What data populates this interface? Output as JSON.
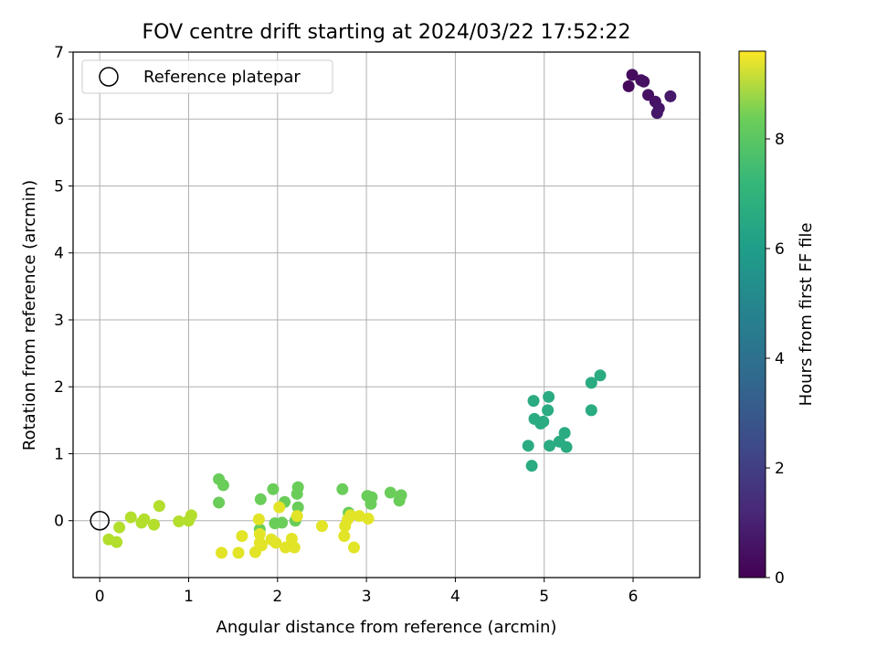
{
  "chart_data": {
    "type": "scatter",
    "title": "FOV centre drift starting at 2024/03/22 17:52:22",
    "xlabel": "Angular distance from reference (arcmin)",
    "ylabel": "Rotation from reference (arcmin)",
    "xlim": [
      -0.3,
      6.75
    ],
    "ylim": [
      -0.85,
      7.0
    ],
    "xticks": [
      0,
      1,
      2,
      3,
      4,
      5,
      6
    ],
    "yticks": [
      0,
      1,
      2,
      3,
      4,
      5,
      6,
      7
    ],
    "grid": true,
    "legend": {
      "placement": "top-left",
      "entries": [
        "Reference platepar"
      ]
    },
    "reference_point": {
      "name": "Reference platepar",
      "x": 0,
      "y": 0
    },
    "colorbar": {
      "label": "Hours from first FF file",
      "colormap": "viridis",
      "range": [
        0,
        9.6
      ],
      "ticks": [
        0,
        2,
        4,
        6,
        8
      ]
    },
    "points": [
      {
        "x": 5.95,
        "y": 6.49,
        "c": 0.25
      },
      {
        "x": 5.99,
        "y": 6.66,
        "c": 0.3
      },
      {
        "x": 6.09,
        "y": 6.58,
        "c": 0.35
      },
      {
        "x": 6.12,
        "y": 6.56,
        "c": 0.4
      },
      {
        "x": 6.17,
        "y": 6.36,
        "c": 0.45
      },
      {
        "x": 6.25,
        "y": 6.26,
        "c": 0.5
      },
      {
        "x": 6.29,
        "y": 6.16,
        "c": 0.55
      },
      {
        "x": 6.27,
        "y": 6.09,
        "c": 0.6
      },
      {
        "x": 6.42,
        "y": 6.34,
        "c": 0.65
      },
      {
        "x": 4.82,
        "y": 1.12,
        "c": 5.9
      },
      {
        "x": 4.86,
        "y": 0.82,
        "c": 5.9
      },
      {
        "x": 4.88,
        "y": 1.79,
        "c": 5.9
      },
      {
        "x": 4.89,
        "y": 1.52,
        "c": 5.9
      },
      {
        "x": 4.96,
        "y": 1.45,
        "c": 5.9
      },
      {
        "x": 4.99,
        "y": 1.48,
        "c": 5.9
      },
      {
        "x": 5.04,
        "y": 1.65,
        "c": 5.9
      },
      {
        "x": 5.05,
        "y": 1.85,
        "c": 5.9
      },
      {
        "x": 5.06,
        "y": 1.12,
        "c": 5.9
      },
      {
        "x": 5.17,
        "y": 1.18,
        "c": 5.9
      },
      {
        "x": 5.23,
        "y": 1.31,
        "c": 5.9
      },
      {
        "x": 5.25,
        "y": 1.1,
        "c": 5.9
      },
      {
        "x": 5.53,
        "y": 1.65,
        "c": 5.9
      },
      {
        "x": 5.53,
        "y": 2.06,
        "c": 5.9
      },
      {
        "x": 5.63,
        "y": 2.17,
        "c": 5.9
      },
      {
        "x": 1.34,
        "y": 0.62,
        "c": 7.4
      },
      {
        "x": 1.39,
        "y": 0.53,
        "c": 7.4
      },
      {
        "x": 1.34,
        "y": 0.27,
        "c": 7.4
      },
      {
        "x": 1.81,
        "y": 0.32,
        "c": 7.4
      },
      {
        "x": 1.95,
        "y": 0.47,
        "c": 7.4
      },
      {
        "x": 2.08,
        "y": 0.28,
        "c": 7.4
      },
      {
        "x": 2.22,
        "y": 0.4,
        "c": 7.4
      },
      {
        "x": 2.23,
        "y": 0.5,
        "c": 7.4
      },
      {
        "x": 2.23,
        "y": 0.2,
        "c": 7.4
      },
      {
        "x": 2.2,
        "y": 0.0,
        "c": 7.4
      },
      {
        "x": 2.05,
        "y": -0.03,
        "c": 7.4
      },
      {
        "x": 1.97,
        "y": -0.04,
        "c": 7.4
      },
      {
        "x": 1.8,
        "y": -0.13,
        "c": 7.4
      },
      {
        "x": 2.73,
        "y": 0.47,
        "c": 7.4
      },
      {
        "x": 2.8,
        "y": 0.12,
        "c": 7.4
      },
      {
        "x": 3.01,
        "y": 0.37,
        "c": 7.4
      },
      {
        "x": 3.06,
        "y": 0.35,
        "c": 7.4
      },
      {
        "x": 3.05,
        "y": 0.25,
        "c": 7.4
      },
      {
        "x": 3.27,
        "y": 0.42,
        "c": 7.4
      },
      {
        "x": 3.37,
        "y": 0.3,
        "c": 7.4
      },
      {
        "x": 3.39,
        "y": 0.38,
        "c": 7.4
      },
      {
        "x": 0.1,
        "y": -0.28,
        "c": 8.5
      },
      {
        "x": 0.19,
        "y": -0.32,
        "c": 8.5
      },
      {
        "x": 0.22,
        "y": -0.1,
        "c": 8.5
      },
      {
        "x": 0.35,
        "y": 0.05,
        "c": 8.5
      },
      {
        "x": 0.47,
        "y": -0.03,
        "c": 8.5
      },
      {
        "x": 0.5,
        "y": 0.02,
        "c": 8.5
      },
      {
        "x": 0.61,
        "y": -0.06,
        "c": 8.5
      },
      {
        "x": 0.67,
        "y": 0.22,
        "c": 8.5
      },
      {
        "x": 0.89,
        "y": -0.01,
        "c": 8.5
      },
      {
        "x": 1.0,
        "y": 0.0,
        "c": 8.5
      },
      {
        "x": 1.03,
        "y": 0.08,
        "c": 8.5
      },
      {
        "x": 1.37,
        "y": -0.48,
        "c": 9.2
      },
      {
        "x": 1.56,
        "y": -0.48,
        "c": 9.2
      },
      {
        "x": 1.6,
        "y": -0.23,
        "c": 9.2
      },
      {
        "x": 1.75,
        "y": -0.47,
        "c": 9.2
      },
      {
        "x": 1.79,
        "y": 0.02,
        "c": 9.2
      },
      {
        "x": 1.8,
        "y": -0.2,
        "c": 9.2
      },
      {
        "x": 1.8,
        "y": -0.33,
        "c": 9.2
      },
      {
        "x": 1.82,
        "y": -0.37,
        "c": 9.2
      },
      {
        "x": 1.93,
        "y": -0.28,
        "c": 9.2
      },
      {
        "x": 1.98,
        "y": -0.33,
        "c": 9.2
      },
      {
        "x": 2.02,
        "y": 0.2,
        "c": 9.2
      },
      {
        "x": 2.09,
        "y": -0.4,
        "c": 9.2
      },
      {
        "x": 2.16,
        "y": -0.27,
        "c": 9.2
      },
      {
        "x": 2.19,
        "y": -0.4,
        "c": 9.2
      },
      {
        "x": 2.22,
        "y": 0.07,
        "c": 9.2
      },
      {
        "x": 2.5,
        "y": -0.08,
        "c": 9.2
      },
      {
        "x": 2.75,
        "y": -0.23,
        "c": 9.2
      },
      {
        "x": 2.76,
        "y": -0.08,
        "c": 9.2
      },
      {
        "x": 2.79,
        "y": 0.02,
        "c": 9.2
      },
      {
        "x": 2.82,
        "y": 0.08,
        "c": 9.2
      },
      {
        "x": 2.86,
        "y": -0.4,
        "c": 9.2
      },
      {
        "x": 2.92,
        "y": 0.07,
        "c": 9.2
      },
      {
        "x": 3.02,
        "y": 0.03,
        "c": 9.2
      }
    ]
  }
}
